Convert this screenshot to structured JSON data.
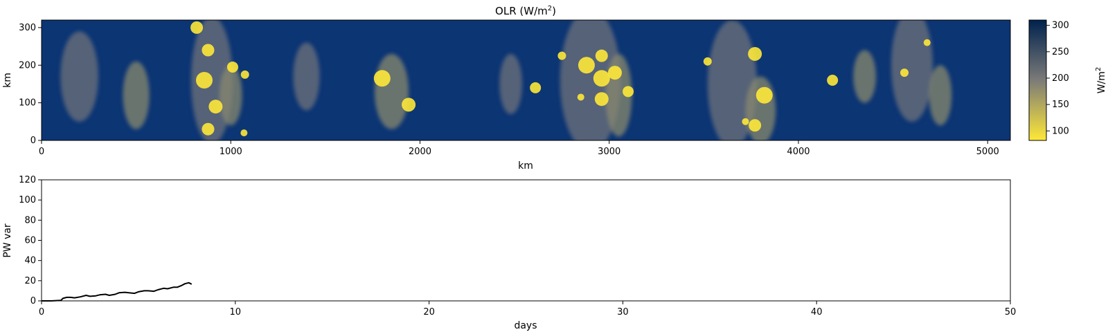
{
  "chart_data": [
    {
      "type": "heatmap",
      "title": "OLR (W/m²)",
      "title_base": "OLR (W/m",
      "title_sup": "2",
      "title_close": ")",
      "xlabel": "km",
      "ylabel": "km",
      "xlim": [
        0,
        5120
      ],
      "ylim": [
        0,
        320
      ],
      "xticks": [
        0,
        1000,
        2000,
        3000,
        4000,
        5000
      ],
      "yticks": [
        0,
        100,
        200,
        300
      ],
      "colorbar": {
        "label": "W/m²",
        "label_base": "W/m",
        "label_sup": "2",
        "range": [
          82,
          310
        ],
        "ticks": [
          100,
          150,
          200,
          250,
          300
        ],
        "colormap": "cividis_reversed",
        "high_color": "#00224e",
        "mid_color": "#7c7b78",
        "low_color": "#fee838"
      },
      "bright_cloud_cores": [
        {
          "x": 820,
          "y": 300
        },
        {
          "x": 860,
          "y": 160
        },
        {
          "x": 920,
          "y": 90
        },
        {
          "x": 1010,
          "y": 195
        },
        {
          "x": 1075,
          "y": 175
        },
        {
          "x": 1070,
          "y": 20
        },
        {
          "x": 880,
          "y": 30
        },
        {
          "x": 1800,
          "y": 165
        },
        {
          "x": 1940,
          "y": 95
        },
        {
          "x": 2610,
          "y": 140
        },
        {
          "x": 2750,
          "y": 225
        },
        {
          "x": 2850,
          "y": 115
        },
        {
          "x": 2960,
          "y": 225
        },
        {
          "x": 2960,
          "y": 165
        },
        {
          "x": 2960,
          "y": 110
        },
        {
          "x": 3100,
          "y": 130
        },
        {
          "x": 3520,
          "y": 210
        },
        {
          "x": 3720,
          "y": 50
        },
        {
          "x": 3770,
          "y": 40
        },
        {
          "x": 3820,
          "y": 120
        },
        {
          "x": 3770,
          "y": 230
        },
        {
          "x": 4180,
          "y": 160
        },
        {
          "x": 4560,
          "y": 180
        },
        {
          "x": 4680,
          "y": 260
        },
        {
          "x": 880,
          "y": 240
        },
        {
          "x": 2880,
          "y": 200
        },
        {
          "x": 3030,
          "y": 180
        }
      ]
    },
    {
      "type": "line",
      "xlabel": "days",
      "ylabel": "PW var",
      "xlim": [
        0,
        50
      ],
      "ylim": [
        0,
        120
      ],
      "xticks": [
        0,
        10,
        20,
        30,
        40,
        50
      ],
      "yticks": [
        0,
        20,
        40,
        60,
        80,
        100,
        120
      ],
      "line_color": "#000000",
      "series": [
        {
          "x": [
            0,
            0.5,
            1.0,
            1.1,
            1.3,
            1.5,
            1.7,
            2.0,
            2.3,
            2.5,
            2.8,
            3.0,
            3.3,
            3.5,
            3.8,
            4.0,
            4.3,
            4.5,
            4.8,
            5.0,
            5.3,
            5.5,
            5.8,
            6.0,
            6.3,
            6.5,
            6.8,
            7.0,
            7.2,
            7.4,
            7.6,
            7.75
          ],
          "y": [
            0,
            0,
            0.5,
            2.5,
            3.5,
            3.5,
            3.0,
            4.0,
            5.5,
            4.5,
            5.0,
            6.0,
            6.5,
            5.5,
            6.5,
            8.0,
            8.5,
            8.0,
            7.5,
            9.0,
            10.0,
            10.0,
            9.5,
            11.0,
            12.5,
            12.0,
            13.5,
            13.5,
            15.0,
            17.0,
            18.0,
            16.5
          ]
        }
      ]
    }
  ]
}
